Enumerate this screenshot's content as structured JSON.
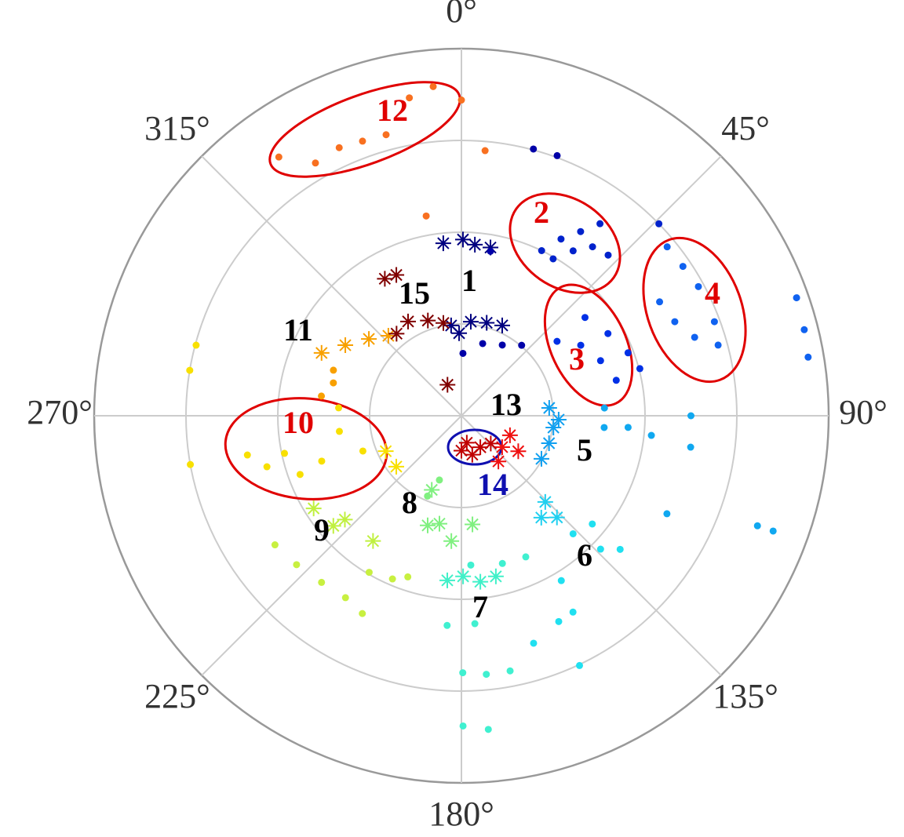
{
  "chart_data": {
    "type": "polar-scatter",
    "rlim": [
      0,
      4
    ],
    "rticks": [
      1,
      2,
      3,
      4
    ],
    "thetalim": [
      0,
      360
    ],
    "theta_direction": "clockwise",
    "theta_zero": "top",
    "thetaticks": [
      {
        "value": 0,
        "label": "0°"
      },
      {
        "value": 45,
        "label": "45°"
      },
      {
        "value": 90,
        "label": "90°"
      },
      {
        "value": 135,
        "label": "135°"
      },
      {
        "value": 180,
        "label": "180°"
      },
      {
        "value": 225,
        "label": "225°"
      },
      {
        "value": 270,
        "label": "270°"
      },
      {
        "value": 315,
        "label": "315°"
      }
    ],
    "grid": true,
    "series": [
      {
        "color": "#00007f",
        "marker": "star",
        "theta": [
          354,
          0.5,
          4.5,
          9.8,
          353.5,
          5.7,
          15.2,
          24.3,
          358.4
        ],
        "r": [
          1.89,
          1.92,
          1.87,
          1.86,
          0.99,
          1.03,
          1.05,
          1.08,
          0.9
        ]
      },
      {
        "color": "#0000a8",
        "marker": "dot",
        "theta": [
          1.4,
          16.4,
          30,
          40.5,
          10,
          15.1,
          20.2
        ],
        "r": [
          0.68,
          0.82,
          0.89,
          1.01,
          1.82,
          3.01,
          3.02
        ]
      },
      {
        "color": "#0022cc",
        "marker": "dot",
        "theta": [
          25.9,
          29.4,
          32.9,
          35.8,
          30.3,
          34.1,
          37.8,
          42.4,
          45.8
        ],
        "r": [
          2.0,
          2.21,
          2.39,
          2.58,
          1.98,
          2.17,
          2.33,
          2.37,
          3.0
        ]
      },
      {
        "color": "#0030e6",
        "marker": "dot",
        "theta": [
          52.1,
          59.4,
          68.4,
          77.1,
          51.5,
          60.7,
          69.3,
          75.2
        ],
        "r": [
          1.32,
          1.51,
          1.63,
          1.73,
          1.72,
          1.83,
          1.94,
          2.01
        ]
      },
      {
        "color": "#1062f0",
        "marker": "dot",
        "theta": [
          50.6,
          56,
          61.4,
          60.1,
          66.2,
          71.4,
          74.6,
          69.6,
          70.6,
          75.9,
          80.4
        ],
        "r": [
          2.9,
          2.91,
          2.94,
          2.49,
          2.54,
          2.68,
          2.9,
          2.94,
          3.87,
          3.85,
          3.83
        ]
      },
      {
        "color": "#10a0f0",
        "marker": "star",
        "theta": [
          84.9,
          97.3,
          107.4,
          118.3,
          92.3
        ],
        "r": [
          0.96,
          1.01,
          1.0,
          0.99,
          1.06
        ]
      },
      {
        "color": "#10a8f0",
        "marker": "dot",
        "theta": [
          86.9,
          94.7,
          94,
          95.9,
          90,
          97.8,
          115.5,
          110.4,
          110.3
        ],
        "r": [
          1.56,
          1.56,
          1.82,
          2.08,
          2.5,
          2.52,
          2.48,
          3.44,
          3.62
        ]
      },
      {
        "color": "#20d0f0",
        "marker": "star",
        "theta": [
          135.8,
          136.8,
          141.9
        ],
        "r": [
          1.31,
          1.52,
          1.41
        ]
      },
      {
        "color": "#20e0f0",
        "marker": "dot",
        "theta": [
          136.6,
          129.6,
          133.8,
          130.1,
          148.8,
          150.4,
          154.7,
          162.4,
          154.7
        ],
        "r": [
          1.77,
          1.85,
          2.1,
          2.26,
          2.1,
          2.46,
          2.48,
          2.6,
          3.01
        ]
      },
      {
        "color": "#40f0c8",
        "marker": "star",
        "theta": [
          184.9,
          179.4,
          173.5,
          167.9
        ],
        "r": [
          1.8,
          1.75,
          1.82,
          1.79
        ]
      },
      {
        "color": "#40f0d0",
        "marker": "dot",
        "theta": [
          176.4,
          164.5,
          155.5,
          183.9,
          176.3,
          179.7,
          174.5,
          169.2,
          179.7,
          175.1
        ],
        "r": [
          1.63,
          1.67,
          1.69,
          2.29,
          2.27,
          2.8,
          2.83,
          2.83,
          3.38,
          3.43
        ]
      },
      {
        "color": "#80f080",
        "marker": "star",
        "theta": [
          201.8,
          191.5,
          184.6,
          174.2,
          197.1
        ],
        "r": [
          0.87,
          1.2,
          1.37,
          1.19,
          1.25
        ]
      },
      {
        "color": "#80f080",
        "marker": "dot",
        "theta": [
          202.9,
          198.9
        ],
        "r": [
          0.95,
          0.74
        ]
      },
      {
        "color": "#c0f040",
        "marker": "star",
        "theta": [
          237.9,
          228.3,
          215.2,
          229.3
        ],
        "r": [
          1.9,
          1.7,
          1.67,
          1.84
        ]
      },
      {
        "color": "#c8f040",
        "marker": "dot",
        "theta": [
          235.3,
          227.9,
          220,
          212.5,
          210.5,
          202.9,
          198.4,
          206.6
        ],
        "r": [
          2.47,
          2.42,
          2.37,
          2.35,
          1.98,
          1.93,
          1.85,
          2.41
        ]
      },
      {
        "color": "#f8e000",
        "marker": "star",
        "theta": [
          244.9,
          232
        ],
        "r": [
          0.91,
          0.9
        ]
      },
      {
        "color": "#f8e000",
        "marker": "dot",
        "theta": [
          259.6,
          255.3,
          258,
          250,
          252,
          262.7,
          273.7,
          250.3,
          284.9,
          279.5,
          259.8
        ],
        "r": [
          2.37,
          2.19,
          1.97,
          1.87,
          1.6,
          1.34,
          1.34,
          1.14,
          2.99,
          3.0,
          3.0
        ]
      },
      {
        "color": "#f8a000",
        "marker": "star",
        "theta": [
          294.2,
          301.3,
          309.7,
          317.6
        ],
        "r": [
          1.67,
          1.48,
          1.31,
          1.18
        ]
      },
      {
        "color": "#f8a000",
        "marker": "dot",
        "theta": [
          289.6,
          284.4,
          278
        ],
        "r": [
          1.48,
          1.44,
          1.54
        ]
      },
      {
        "color": "#f87020",
        "marker": "dot",
        "theta": [
          324.8,
          330,
          335.5,
          340.2,
          345,
          350.7,
          355.1,
          0,
          5.1,
          350
        ],
        "r": [
          3.45,
          3.18,
          3.21,
          3.18,
          3.17,
          3.51,
          3.6,
          3.44,
          2.9,
          2.21
        ]
      },
      {
        "color": "#f01010",
        "marker": "star",
        "theta": [
          127.6,
          122,
          111.9,
          141
        ],
        "r": [
          0.56,
          0.73,
          0.57,
          0.64
        ]
      },
      {
        "color": "#c00000",
        "marker": "star",
        "theta": [
          168.7,
          149,
          133.4,
          164.4,
          180
        ],
        "r": [
          0.3,
          0.4,
          0.44,
          0.44,
          0.38
        ]
      },
      {
        "color": "#800000",
        "marker": "star",
        "theta": [
          330.8,
          335.2,
          330.5,
          340.6,
          349,
          321.7,
          335.8
        ],
        "r": [
          1.71,
          1.69,
          1.18,
          1.1,
          1.03,
          1.14,
          0.37
        ]
      }
    ],
    "annotations": [
      {
        "text": "1",
        "color": "#000000"
      },
      {
        "text": "2",
        "color": "#e00000"
      },
      {
        "text": "3",
        "color": "#e00000"
      },
      {
        "text": "4",
        "color": "#e00000"
      },
      {
        "text": "5",
        "color": "#000000"
      },
      {
        "text": "6",
        "color": "#000000"
      },
      {
        "text": "7",
        "color": "#000000"
      },
      {
        "text": "8",
        "color": "#000000"
      },
      {
        "text": "9",
        "color": "#000000"
      },
      {
        "text": "10",
        "color": "#e00000"
      },
      {
        "text": "11",
        "color": "#000000"
      },
      {
        "text": "12",
        "color": "#e00000"
      },
      {
        "text": "13",
        "color": "#000000"
      },
      {
        "text": "14",
        "color": "#1010b0"
      },
      {
        "text": "15",
        "color": "#000000"
      }
    ]
  }
}
